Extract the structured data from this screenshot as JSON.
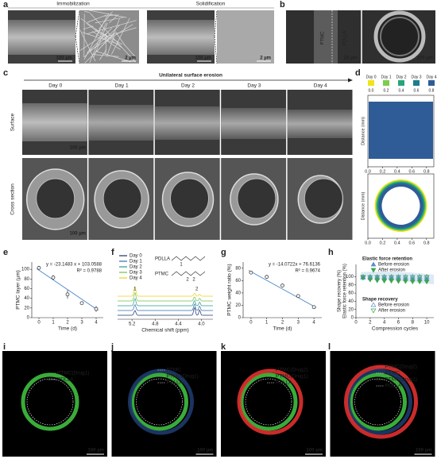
{
  "panel_labels": [
    "a",
    "b",
    "c",
    "d",
    "e",
    "f",
    "g",
    "h",
    "i",
    "j",
    "k",
    "l"
  ],
  "a": {
    "headers": [
      "Immobilization",
      "Solidification"
    ],
    "scale_bars": [
      "100 µm",
      "2 µm",
      "100 µm",
      "2 µm"
    ]
  },
  "b": {
    "labels": [
      "PTMC",
      "PDLLA"
    ],
    "scale_bars": [
      "25 µm",
      "100 µm"
    ]
  },
  "c": {
    "title": "Unilateral surface erosion",
    "days": [
      "Day 0",
      "Day 1",
      "Day 2",
      "Day 3",
      "Day 4"
    ],
    "rows": [
      "Surface",
      "Cross section"
    ],
    "scale_bars": [
      "100 µm",
      "100 µm"
    ]
  },
  "d": {
    "legend": [
      "Day 0",
      "Day 1",
      "Day 2",
      "Day 3",
      "Day 4"
    ],
    "colors": [
      "#f0e41c",
      "#7ccd4c",
      "#27a57a",
      "#1f7d8c",
      "#2f5c96"
    ],
    "scale": [
      {
        "value": 0,
        "label": "0.0"
      },
      0.2,
      0.4,
      0.6,
      0.8
    ],
    "y_label": "Distance (mm)",
    "xticks": [
      {
        "value": 0,
        "label": "0.0"
      },
      0.2,
      0.4,
      0.6,
      0.8
    ]
  },
  "f": {
    "legend": [
      "Day 0",
      "Day 1",
      "Day 2",
      "Day 3",
      "Day 4"
    ],
    "colors": [
      "#1f2f6e",
      "#2f6fb0",
      "#2a9a8a",
      "#6cc24a",
      "#e8d21c"
    ],
    "structures": [
      "PDLLA",
      "PTMC"
    ],
    "structure_numbers": [
      "1",
      "2",
      "2"
    ],
    "peak_numbers": [
      "1",
      "2"
    ],
    "x_label": "Chemical shift (ppm)",
    "xticks": [
      5.2,
      4.8,
      4.4,
      {
        "value": 4,
        "label": "4.0"
      }
    ],
    "xlim": [
      5.45,
      3.8
    ]
  },
  "chart_data": [
    {
      "type": "scatter",
      "x_label": "Time (d)",
      "y_label": "PTMC layer (µm)",
      "annotations": [
        "y = -23.1483 x + 103.0588",
        "R² = 0.9788"
      ],
      "x": [
        0,
        1,
        2,
        3,
        4
      ],
      "series": [
        {
          "color": "#3a3a3a",
          "values": [
            103,
            83,
            48,
            30,
            18
          ],
          "errors": [
            3,
            5,
            9,
            3,
            6
          ]
        }
      ],
      "xlim": [
        -0.5,
        4.5
      ],
      "ylim": [
        0,
        115
      ],
      "xticks": [
        0,
        1,
        2,
        3,
        4
      ],
      "yticks": [
        0,
        20,
        40,
        60,
        80,
        100
      ]
    },
    {
      "type": "scatter",
      "x_label": "Time (d)",
      "y_label": "PTMC weight ratio (%)",
      "annotations": [
        "y = -14.0722x + 76.6136",
        "R² = 0.9674"
      ],
      "x": [
        0,
        1,
        2,
        3,
        4
      ],
      "series": [
        {
          "color": "#3a3a3a",
          "values": [
            73,
            66,
            52,
            35,
            17
          ]
        }
      ],
      "xlim": [
        -0.5,
        4.5
      ],
      "ylim": [
        0,
        90
      ],
      "xticks": [
        0,
        1,
        2,
        3,
        4
      ],
      "yticks": [
        0,
        20,
        40,
        60,
        80
      ]
    },
    {
      "type": "scatter",
      "x_label": "Compression cycles",
      "y_label": [
        "Shape recovery (%)",
        "Elastic force retention (%)"
      ],
      "legend_titles": [
        "Elastic force retention",
        "Shape recovery"
      ],
      "x": [
        1,
        2,
        3,
        4,
        5,
        6,
        7,
        8,
        9,
        10
      ],
      "series": [
        {
          "name": "Before erosion",
          "color": "#5b8fd0",
          "marker": "up",
          "filled": true,
          "values": [
            98,
            97,
            97,
            96,
            96,
            96,
            95,
            95,
            95,
            95
          ]
        },
        {
          "name": "After erosion",
          "color": "#3aa64a",
          "marker": "down",
          "filled": true,
          "values": [
            97,
            93,
            91,
            90,
            90,
            89,
            89,
            88,
            88,
            88
          ]
        },
        {
          "name": "Before erosion",
          "color": "#5b8fd0",
          "marker": "up",
          "filled": false,
          "values": [
            100,
            100,
            100,
            100,
            100,
            100,
            100,
            100,
            100,
            100
          ]
        },
        {
          "name": "After erosion",
          "color": "#3aa64a",
          "marker": "down",
          "filled": false,
          "values": [
            100,
            99,
            99,
            99,
            99,
            99,
            99,
            99,
            99,
            99
          ]
        }
      ],
      "xlim": [
        0,
        11
      ],
      "ylim": [
        0,
        130
      ],
      "xticks": [
        0,
        2,
        4,
        6,
        8,
        10
      ],
      "yticks": [
        0,
        20,
        40,
        60,
        80,
        100
      ]
    }
  ],
  "i": {
    "labels": [
      "PTMC(Drug1)",
      "PDLLA"
    ],
    "label_colors": [
      "#5fd35f",
      "#ffffff"
    ],
    "scale_bar": "100 µm"
  },
  "j": {
    "labels": [
      "PTMC",
      "PTMC(Drug1)",
      "PDLLA"
    ],
    "label_colors": [
      "#ffffff",
      "#5fd35f",
      "#ffffff"
    ],
    "scale_bar": "100 µm"
  },
  "k": {
    "labels": [
      "PTMC(Drug2)",
      "PTMC(Drug1)",
      "PDLLA"
    ],
    "label_colors": [
      "#ff4040",
      "#5fd35f",
      "#ffffff"
    ],
    "scale_bar": "100 µm"
  },
  "l": {
    "labels": [
      "PTMC(Drug2)",
      "PTMC",
      "PTMC(Drug1)",
      "PDLLA"
    ],
    "label_colors": [
      "#ff4040",
      "#ffffff",
      "#5fd35f",
      "#ffffff"
    ],
    "scale_bar": "100 µm"
  }
}
